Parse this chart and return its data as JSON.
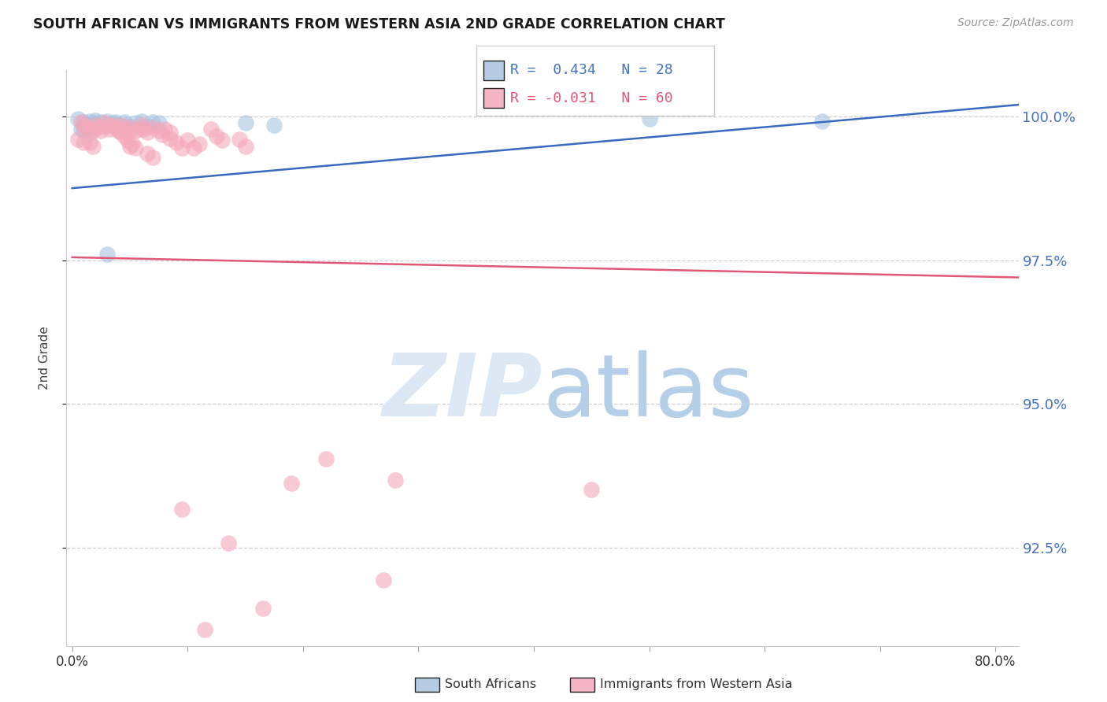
{
  "title": "SOUTH AFRICAN VS IMMIGRANTS FROM WESTERN ASIA 2ND GRADE CORRELATION CHART",
  "source": "Source: ZipAtlas.com",
  "ylabel": "2nd Grade",
  "ytick_labels": [
    "100.0%",
    "97.5%",
    "95.0%",
    "92.5%"
  ],
  "ytick_values": [
    1.0,
    0.975,
    0.95,
    0.925
  ],
  "ymin": 0.908,
  "ymax": 1.008,
  "xmin": -0.005,
  "xmax": 0.82,
  "legend_blue_r": "R =  0.434",
  "legend_blue_n": "N = 28",
  "legend_pink_r": "R = -0.031",
  "legend_pink_n": "N = 60",
  "blue_color": "#a8c4e0",
  "pink_color": "#f4a8bb",
  "trendline_blue": "#3a6abf",
  "trendline_pink": "#e05878",
  "blue_trendline_x": [
    0.0,
    0.82
  ],
  "blue_trendline_y": [
    0.9875,
    1.002
  ],
  "pink_trendline_x": [
    0.0,
    0.82
  ],
  "pink_trendline_y": [
    0.9755,
    0.972
  ],
  "blue_scatter": [
    [
      0.005,
      0.9995
    ],
    [
      0.01,
      0.999
    ],
    [
      0.012,
      0.9985
    ],
    [
      0.015,
      0.9992
    ],
    [
      0.018,
      0.9988
    ],
    [
      0.02,
      0.9993
    ],
    [
      0.022,
      0.9987
    ],
    [
      0.025,
      0.999
    ],
    [
      0.028,
      0.9985
    ],
    [
      0.03,
      0.9992
    ],
    [
      0.035,
      0.9988
    ],
    [
      0.038,
      0.999
    ],
    [
      0.04,
      0.9985
    ],
    [
      0.045,
      0.999
    ],
    [
      0.048,
      0.9985
    ],
    [
      0.055,
      0.9988
    ],
    [
      0.06,
      0.9992
    ],
    [
      0.065,
      0.9985
    ],
    [
      0.07,
      0.999
    ],
    [
      0.075,
      0.9988
    ],
    [
      0.01,
      0.9975
    ],
    [
      0.015,
      0.9972
    ],
    [
      0.008,
      0.9978
    ],
    [
      0.03,
      0.976
    ],
    [
      0.5,
      0.9995
    ],
    [
      0.65,
      0.9992
    ],
    [
      0.15,
      0.9988
    ],
    [
      0.175,
      0.9985
    ]
  ],
  "pink_scatter": [
    [
      0.008,
      0.999
    ],
    [
      0.01,
      0.9985
    ],
    [
      0.012,
      0.998
    ],
    [
      0.015,
      0.9978
    ],
    [
      0.018,
      0.9975
    ],
    [
      0.02,
      0.9985
    ],
    [
      0.022,
      0.998
    ],
    [
      0.025,
      0.9975
    ],
    [
      0.028,
      0.9988
    ],
    [
      0.03,
      0.9983
    ],
    [
      0.032,
      0.9978
    ],
    [
      0.035,
      0.9985
    ],
    [
      0.038,
      0.998
    ],
    [
      0.04,
      0.9975
    ],
    [
      0.042,
      0.9985
    ],
    [
      0.045,
      0.9978
    ],
    [
      0.048,
      0.9972
    ],
    [
      0.05,
      0.998
    ],
    [
      0.055,
      0.9975
    ],
    [
      0.058,
      0.9978
    ],
    [
      0.06,
      0.9985
    ],
    [
      0.062,
      0.9978
    ],
    [
      0.065,
      0.9972
    ],
    [
      0.07,
      0.998
    ],
    [
      0.075,
      0.9975
    ],
    [
      0.078,
      0.9968
    ],
    [
      0.08,
      0.9978
    ],
    [
      0.085,
      0.9972
    ],
    [
      0.005,
      0.996
    ],
    [
      0.01,
      0.9955
    ],
    [
      0.015,
      0.9955
    ],
    [
      0.018,
      0.9948
    ],
    [
      0.05,
      0.9948
    ],
    [
      0.055,
      0.9945
    ],
    [
      0.1,
      0.9958
    ],
    [
      0.105,
      0.9945
    ],
    [
      0.11,
      0.9952
    ],
    [
      0.145,
      0.996
    ],
    [
      0.15,
      0.9948
    ],
    [
      0.042,
      0.9972
    ],
    [
      0.045,
      0.9965
    ],
    [
      0.048,
      0.9958
    ],
    [
      0.052,
      0.9952
    ],
    [
      0.12,
      0.9978
    ],
    [
      0.125,
      0.9965
    ],
    [
      0.13,
      0.9958
    ],
    [
      0.085,
      0.9962
    ],
    [
      0.09,
      0.9955
    ],
    [
      0.095,
      0.9945
    ],
    [
      0.065,
      0.9935
    ],
    [
      0.07,
      0.9928
    ],
    [
      0.19,
      0.9362
    ],
    [
      0.22,
      0.9405
    ],
    [
      0.095,
      0.9318
    ],
    [
      0.135,
      0.9258
    ],
    [
      0.165,
      0.9145
    ],
    [
      0.28,
      0.9368
    ],
    [
      0.45,
      0.9352
    ],
    [
      0.115,
      0.9108
    ],
    [
      0.27,
      0.9195
    ]
  ]
}
